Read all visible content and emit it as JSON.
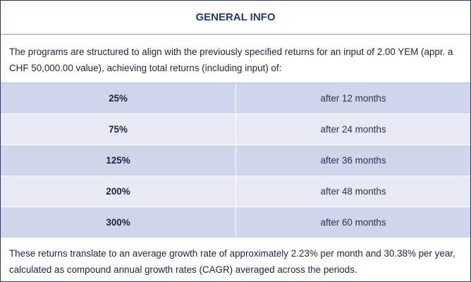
{
  "title": "GENERAL INFO",
  "intro": "The programs are structured to align with the previously specified returns for an input of 2.00 YEM (appr. a CHF 50,000.00 value), achieving total returns (including input) of:",
  "rows": [
    {
      "percent": "25%",
      "period": "after 12 months"
    },
    {
      "percent": "75%",
      "period": "after 24 months"
    },
    {
      "percent": "125%",
      "period": "after 36 months"
    },
    {
      "percent": "200%",
      "period": "after 48 months"
    },
    {
      "percent": "300%",
      "period": "after 60 months"
    }
  ],
  "outro": "These returns translate to an average growth rate of approximately 2.23% per month and 30.38% per year, calculated as compound annual growth rates (CAGR) averaged across the periods.",
  "colors": {
    "title": "#1e3a73",
    "row_dark": "#cfd5ea",
    "row_light": "#e7eaf5"
  }
}
